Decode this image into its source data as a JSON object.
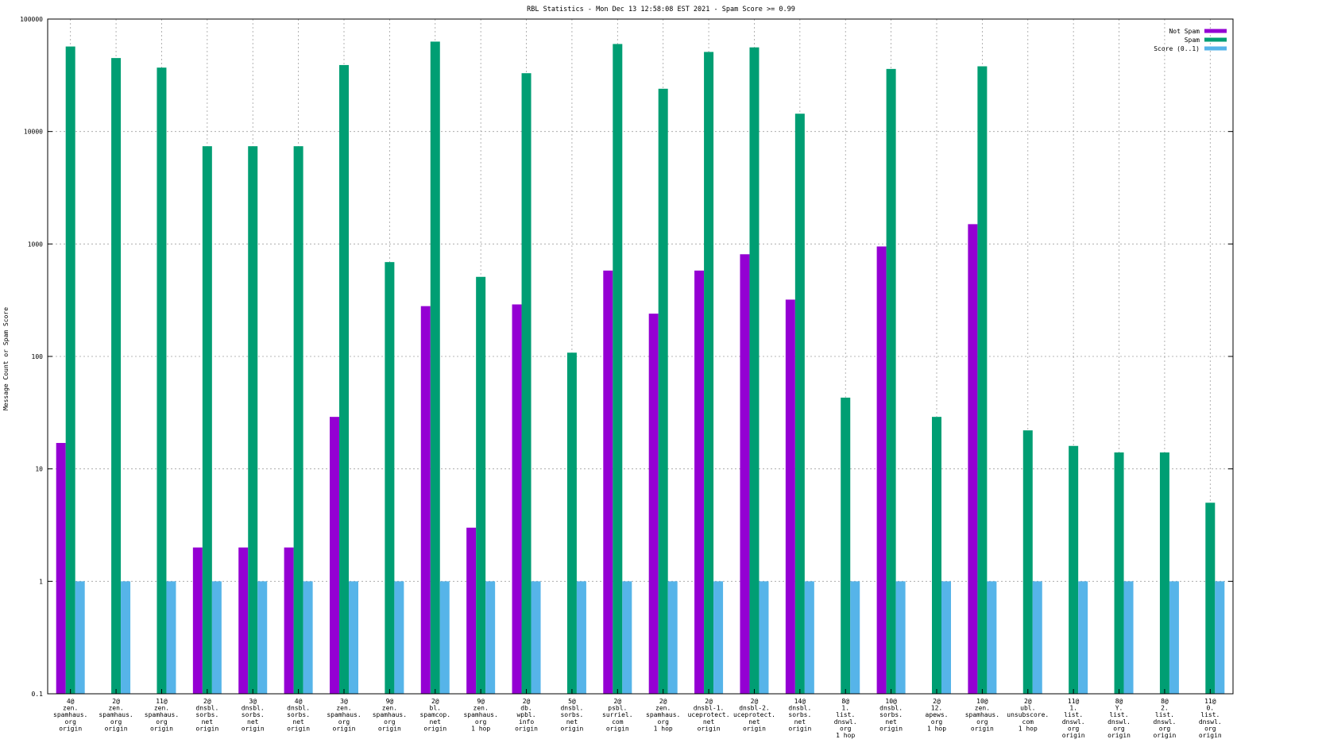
{
  "chart_data": {
    "type": "bar",
    "title": "RBL Statistics - Mon Dec 13 12:58:08 EST 2021 - Spam Score >= 0.99",
    "xlabel": "",
    "ylabel": "Message Count or Spam Score",
    "yscale": "log",
    "ylim": [
      0.1,
      100000
    ],
    "y_ticks": [
      "0.1",
      "1",
      "10",
      "100",
      "1000",
      "10000",
      "100000"
    ],
    "grid": true,
    "legend_position": "top-right",
    "categories": [
      [
        "4@",
        "zen.",
        "spamhaus.",
        "org",
        "origin"
      ],
      [
        "2@",
        "zen.",
        "spamhaus.",
        "org",
        "origin"
      ],
      [
        "11@",
        "zen.",
        "spamhaus.",
        "org",
        "origin"
      ],
      [
        "2@",
        "dnsbl.",
        "sorbs.",
        "net",
        "origin"
      ],
      [
        "3@",
        "dnsbl.",
        "sorbs.",
        "net",
        "origin"
      ],
      [
        "4@",
        "dnsbl.",
        "sorbs.",
        "net",
        "origin"
      ],
      [
        "3@",
        "zen.",
        "spamhaus.",
        "org",
        "origin"
      ],
      [
        "9@",
        "zen.",
        "spamhaus.",
        "org",
        "origin"
      ],
      [
        "2@",
        "bl.",
        "spamcop.",
        "net",
        "origin"
      ],
      [
        "9@",
        "zen.",
        "spamhaus.",
        "org",
        "1 hop"
      ],
      [
        "2@",
        "db.",
        "wpbl.",
        "info",
        "origin"
      ],
      [
        "5@",
        "dnsbl.",
        "sorbs.",
        "net",
        "origin"
      ],
      [
        "2@",
        "psbl.",
        "surriel.",
        "com",
        "origin"
      ],
      [
        "2@",
        "zen.",
        "spamhaus.",
        "org",
        "1 hop"
      ],
      [
        "2@",
        "dnsbl-1.",
        "uceprotect.",
        "net",
        "origin"
      ],
      [
        "2@",
        "dnsbl-2.",
        "uceprotect.",
        "net",
        "origin"
      ],
      [
        "14@",
        "dnsbl.",
        "sorbs.",
        "net",
        "origin"
      ],
      [
        "8@",
        "1.",
        "list.",
        "dnswl.",
        "org",
        "1 hop"
      ],
      [
        "10@",
        "dnsbl.",
        "sorbs.",
        "net",
        "origin"
      ],
      [
        "2@",
        "12.",
        "apews.",
        "org",
        "1 hop"
      ],
      [
        "10@",
        "zen.",
        "spamhaus.",
        "org",
        "origin"
      ],
      [
        "2@",
        "ubl.",
        "unsubscore.",
        "com",
        "1 hop"
      ],
      [
        "11@",
        "1.",
        "list.",
        "dnswl.",
        "org",
        "origin"
      ],
      [
        "8@",
        "Y.",
        "list.",
        "dnswl.",
        "org",
        "origin"
      ],
      [
        "8@",
        "2.",
        "list.",
        "dnswl.",
        "org",
        "origin"
      ],
      [
        "11@",
        "0.",
        "list.",
        "dnswl.",
        "org",
        "origin"
      ]
    ],
    "series": [
      {
        "name": "Not Spam",
        "color": "#9400d3",
        "values": [
          17,
          null,
          null,
          2,
          2,
          2,
          29,
          null,
          280,
          3,
          290,
          null,
          580,
          240,
          580,
          810,
          320,
          null,
          950,
          null,
          1500,
          null,
          null,
          null,
          null,
          null
        ]
      },
      {
        "name": "Spam",
        "color": "#009e73",
        "values": [
          57000,
          45000,
          37000,
          7400,
          7400,
          7400,
          39000,
          690,
          63000,
          510,
          33000,
          108,
          60000,
          24000,
          51000,
          56000,
          14400,
          43,
          36000,
          29,
          38000,
          22,
          16,
          14,
          14,
          5
        ]
      },
      {
        "name": "Score (0..1)",
        "color": "#56b4e9",
        "values": [
          1,
          1,
          1,
          1,
          1,
          1,
          1,
          1,
          1,
          1,
          1,
          1,
          1,
          1,
          1,
          1,
          1,
          1,
          1,
          1,
          1,
          1,
          1,
          1,
          1,
          1
        ]
      }
    ]
  }
}
